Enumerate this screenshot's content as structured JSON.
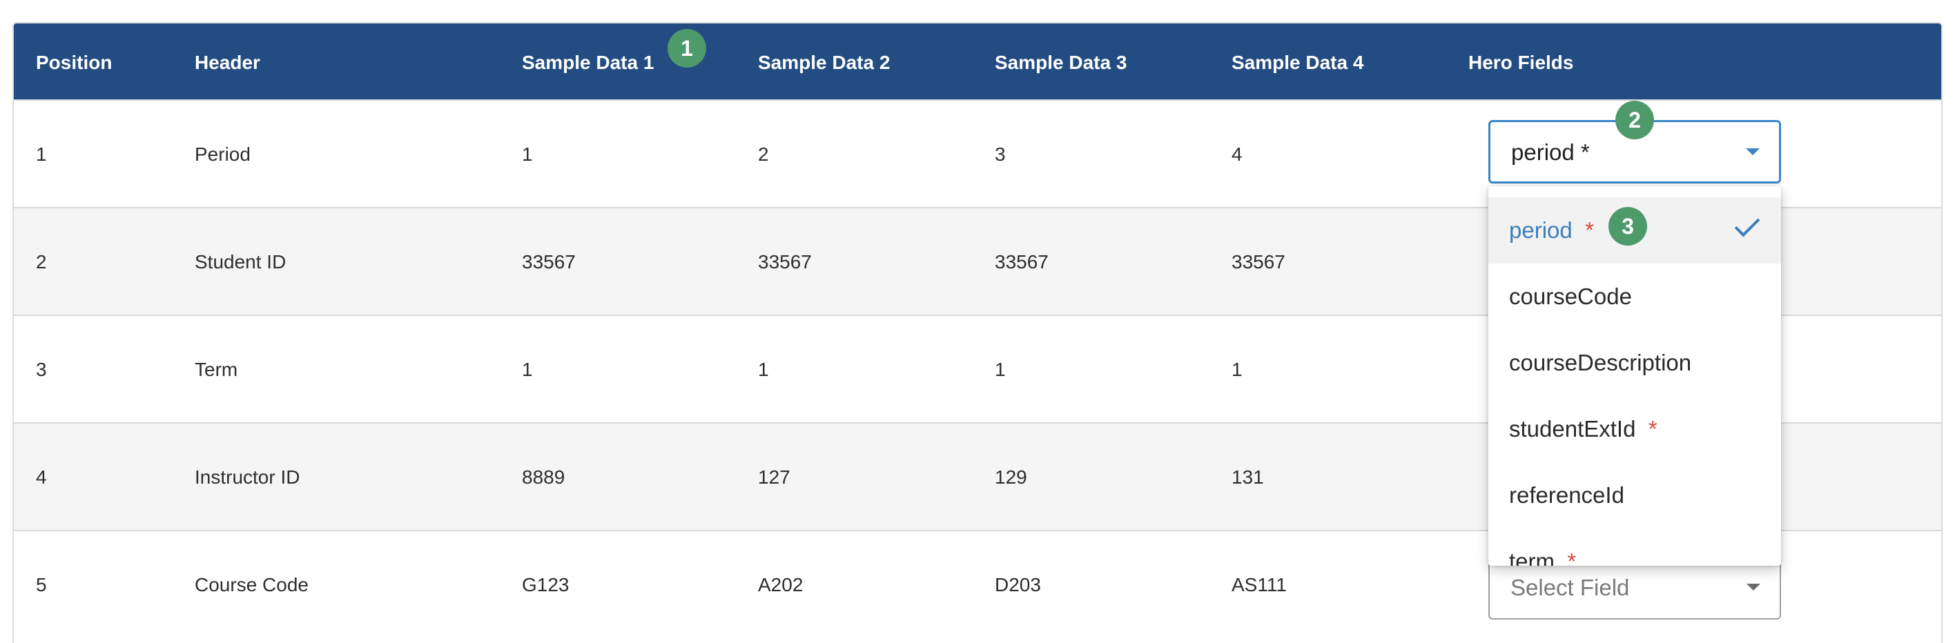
{
  "table": {
    "headers": [
      "Position",
      "Header",
      "Sample Data 1",
      "Sample Data 2",
      "Sample Data 3",
      "Sample Data 4",
      "Hero Fields"
    ],
    "rows": [
      [
        "1",
        "Period",
        "1",
        "2",
        "3",
        "4"
      ],
      [
        "2",
        "Student ID",
        "33567",
        "33567",
        "33567",
        "33567"
      ],
      [
        "3",
        "Term",
        "1",
        "1",
        "1",
        "1"
      ],
      [
        "4",
        "Instructor ID",
        "8889",
        "127",
        "129",
        "131"
      ],
      [
        "5",
        "Course Code",
        "G123",
        "A202",
        "D203",
        "AS111"
      ]
    ]
  },
  "hero_select": {
    "value": "period *",
    "placeholder": "Select Field"
  },
  "dropdown": {
    "options": [
      {
        "label": "period",
        "required": "*",
        "selected": true
      },
      {
        "label": "courseCode",
        "required": ""
      },
      {
        "label": "courseDescription",
        "required": ""
      },
      {
        "label": "studentExtId",
        "required": "*"
      },
      {
        "label": "referenceId",
        "required": ""
      },
      {
        "label": "term",
        "required": "*"
      }
    ]
  },
  "badges": [
    "1",
    "2",
    "3"
  ],
  "colors": {
    "header_bg": "#234d82",
    "accent": "#3a7fbd",
    "required": "#d94b3d",
    "badge": "#4e9a6a"
  }
}
